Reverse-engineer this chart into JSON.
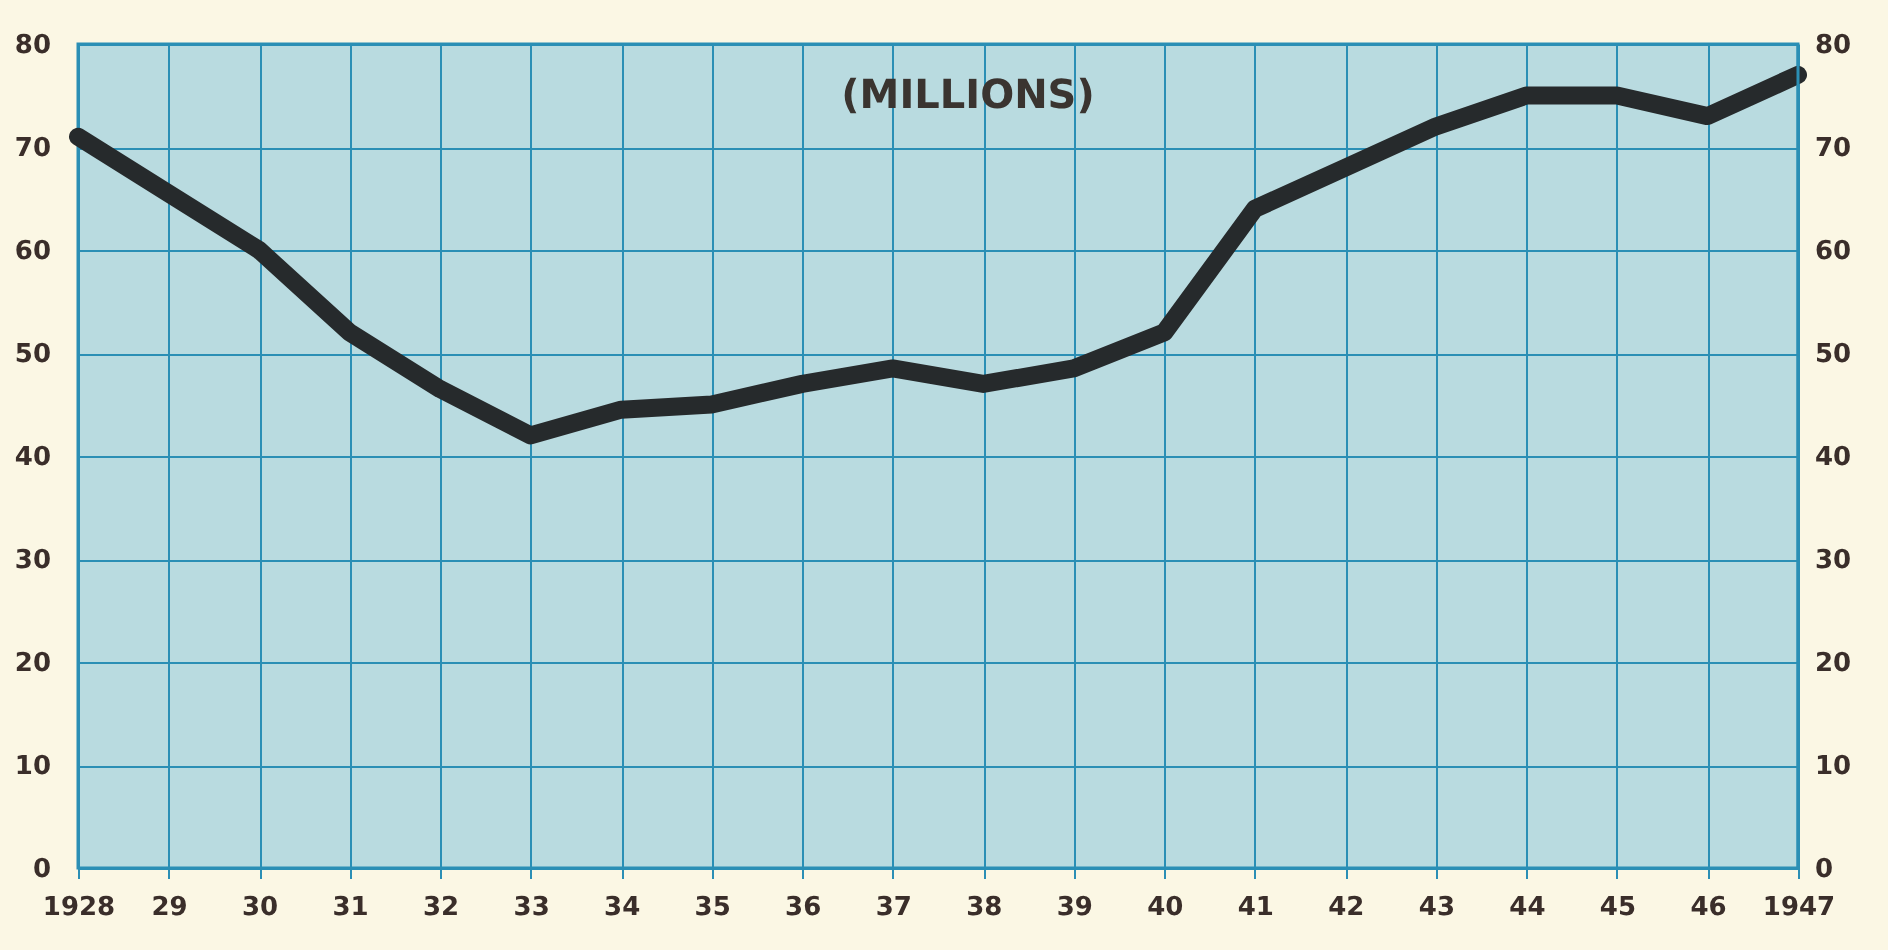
{
  "chart_data": {
    "type": "line",
    "annotations": [
      "(MILLIONS)"
    ],
    "categories": [
      "1928",
      "29",
      "30",
      "31",
      "32",
      "33",
      "34",
      "35",
      "36",
      "37",
      "38",
      "39",
      "40",
      "41",
      "42",
      "43",
      "44",
      "45",
      "46",
      "1947"
    ],
    "series": [
      {
        "color": "#262a2c",
        "values": [
          71,
          65.5,
          60,
          52,
          46.5,
          42,
          44.5,
          45,
          47,
          48.5,
          47,
          48.5,
          52,
          64,
          68,
          72,
          75,
          75,
          73,
          77
        ]
      }
    ],
    "ylim": [
      0,
      80
    ],
    "yticks": [
      0,
      10,
      20,
      30,
      40,
      50,
      60,
      70,
      80
    ],
    "y2lim": [
      0,
      80
    ],
    "y2ticks": [
      0,
      10,
      20,
      30,
      40,
      50,
      60,
      70,
      80
    ],
    "grid": true,
    "marker": "none",
    "line_style": "solid"
  }
}
